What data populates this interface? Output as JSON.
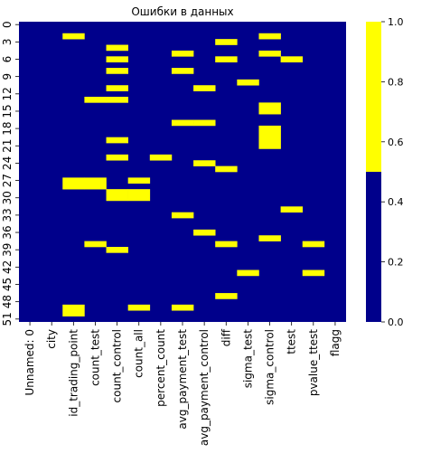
{
  "chart_data": {
    "type": "heatmap",
    "title": "Ошибки в данных",
    "xlabel": "",
    "ylabel": "",
    "columns": [
      "Unnamed: 0",
      "city",
      "id_trading_point",
      "count_test",
      "count_control",
      "count_all",
      "percent_count",
      "avg_payment_test",
      "avg_payment_control",
      "diff",
      "sigma_test",
      "sigma_control",
      "ttest",
      "pvalue_ttest",
      "flagg"
    ],
    "row_count": 52,
    "y_tick_labels": [
      "0",
      "3",
      "6",
      "9",
      "12",
      "15",
      "18",
      "21",
      "24",
      "27",
      "30",
      "33",
      "36",
      "39",
      "42",
      "45",
      "48",
      "51"
    ],
    "values_meaning": "1 = error (yellow), 0 = ok (blue)",
    "error_cells": [
      [
        2,
        2,
        2
      ],
      [
        2,
        27,
        28
      ],
      [
        2,
        49,
        50
      ],
      [
        3,
        13,
        13
      ],
      [
        3,
        27,
        28
      ],
      [
        3,
        38,
        38
      ],
      [
        4,
        4,
        4
      ],
      [
        4,
        6,
        6
      ],
      [
        4,
        8,
        8
      ],
      [
        4,
        11,
        11
      ],
      [
        4,
        13,
        13
      ],
      [
        4,
        20,
        20
      ],
      [
        4,
        23,
        23
      ],
      [
        4,
        29,
        30
      ],
      [
        4,
        39,
        39
      ],
      [
        5,
        27,
        27
      ],
      [
        5,
        29,
        30
      ],
      [
        5,
        49,
        49
      ],
      [
        6,
        23,
        23
      ],
      [
        7,
        5,
        5
      ],
      [
        7,
        8,
        8
      ],
      [
        7,
        17,
        17
      ],
      [
        7,
        33,
        33
      ],
      [
        7,
        49,
        49
      ],
      [
        8,
        11,
        11
      ],
      [
        8,
        17,
        17
      ],
      [
        8,
        24,
        24
      ],
      [
        8,
        36,
        36
      ],
      [
        9,
        3,
        3
      ],
      [
        9,
        6,
        6
      ],
      [
        9,
        25,
        25
      ],
      [
        9,
        38,
        38
      ],
      [
        9,
        47,
        47
      ],
      [
        10,
        10,
        10
      ],
      [
        10,
        43,
        43
      ],
      [
        11,
        2,
        2
      ],
      [
        11,
        5,
        5
      ],
      [
        11,
        14,
        15
      ],
      [
        11,
        18,
        21
      ],
      [
        11,
        37,
        37
      ],
      [
        12,
        6,
        6
      ],
      [
        12,
        32,
        32
      ],
      [
        13,
        38,
        38
      ],
      [
        13,
        43,
        43
      ]
    ],
    "colorbar": {
      "ticks": [
        "0.0",
        "0.2",
        "0.4",
        "0.6",
        "0.8",
        "1.0"
      ],
      "range": [
        0,
        1
      ]
    },
    "colors": {
      "ok": "#00008b",
      "error": "#ffff00"
    }
  }
}
